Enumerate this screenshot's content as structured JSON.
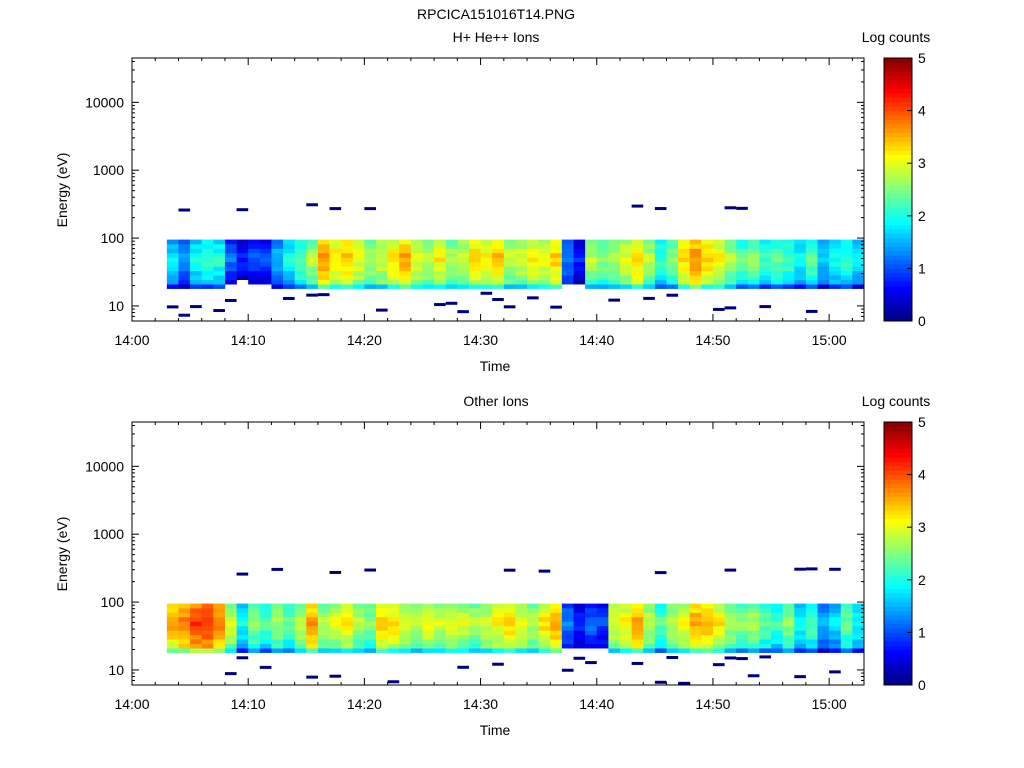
{
  "figure_title": "RPCICA151016T14.PNG",
  "colors": {
    "jet": [
      "#00007f",
      "#0000ff",
      "#007fff",
      "#00ffff",
      "#7fff7f",
      "#ffff00",
      "#ff7f00",
      "#ff0000",
      "#7f0000"
    ]
  },
  "chart_data": [
    {
      "type": "heatmap",
      "title": "H+ He++ Ions",
      "xlabel": "Time",
      "ylabel": "Energy (eV)",
      "y_scale": "log",
      "ylim": [
        6,
        45000
      ],
      "xlim": [
        "14:00",
        "15:03"
      ],
      "x_ticks": [
        "14:00",
        "14:10",
        "14:20",
        "14:30",
        "14:40",
        "14:50",
        "15:00"
      ],
      "y_ticks": [
        "10",
        "100",
        "1000",
        "10000"
      ],
      "colorbar": {
        "label": "Log counts",
        "range": [
          0,
          5
        ],
        "ticks": [
          "0",
          "1",
          "2",
          "3",
          "4",
          "5"
        ]
      },
      "energy_band_ev": [
        18,
        95
      ],
      "time_start": "14:03",
      "time_end": "15:03",
      "peak_log_counts_by_minute": [
        2.0,
        1.6,
        2.2,
        2.4,
        2.3,
        1.4,
        1.0,
        1.3,
        1.2,
        1.8,
        2.2,
        2.6,
        3.0,
        3.9,
        3.5,
        3.7,
        3.3,
        3.0,
        3.2,
        3.5,
        3.8,
        3.3,
        3.1,
        3.4,
        3.0,
        3.2,
        3.6,
        3.4,
        3.7,
        3.1,
        3.2,
        3.4,
        3.3,
        3.6,
        1.5,
        1.0,
        3.0,
        2.8,
        3.0,
        3.2,
        3.6,
        3.0,
        2.4,
        2.8,
        3.5,
        3.9,
        3.6,
        3.4,
        3.0,
        2.6,
        2.8,
        2.4,
        2.6,
        2.5,
        2.2,
        2.6,
        2.0,
        2.2,
        2.4,
        2.0
      ]
    },
    {
      "type": "heatmap",
      "title": "Other Ions",
      "xlabel": "Time",
      "ylabel": "Energy (eV)",
      "y_scale": "log",
      "ylim": [
        6,
        45000
      ],
      "xlim": [
        "14:00",
        "15:03"
      ],
      "x_ticks": [
        "14:00",
        "14:10",
        "14:20",
        "14:30",
        "14:40",
        "14:50",
        "15:00"
      ],
      "y_ticks": [
        "10",
        "100",
        "1000",
        "10000"
      ],
      "colorbar": {
        "label": "Log counts",
        "range": [
          0,
          5
        ],
        "ticks": [
          "0",
          "1",
          "2",
          "3",
          "4",
          "5"
        ]
      },
      "energy_band_ev": [
        18,
        95
      ],
      "time_start": "14:03",
      "time_end": "15:03",
      "peak_log_counts_by_minute": [
        3.8,
        4.0,
        4.3,
        4.4,
        4.0,
        3.2,
        2.2,
        2.8,
        2.5,
        2.9,
        2.6,
        3.1,
        3.8,
        3.0,
        3.2,
        3.4,
        3.0,
        2.8,
        3.6,
        3.5,
        3.2,
        3.0,
        3.3,
        3.1,
        3.3,
        3.2,
        3.0,
        3.2,
        3.4,
        3.6,
        3.3,
        3.0,
        3.5,
        3.8,
        1.5,
        1.1,
        1.4,
        1.2,
        3.2,
        3.4,
        3.8,
        3.1,
        2.6,
        3.0,
        3.3,
        3.8,
        3.7,
        3.4,
        3.0,
        2.8,
        3.0,
        2.6,
        2.4,
        2.8,
        2.2,
        2.5,
        1.8,
        2.0,
        2.6,
        2.2
      ]
    }
  ]
}
